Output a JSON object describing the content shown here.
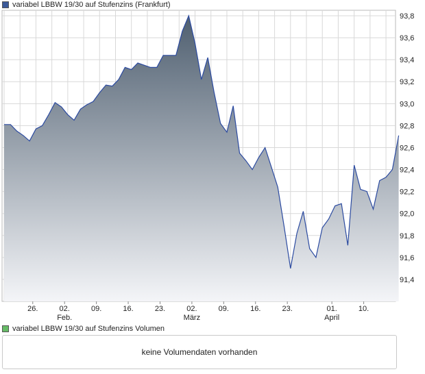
{
  "legend": {
    "price_label": "variabel LBBW 19/30 auf Stufenzins (Frankfurt)",
    "price_color": "#3b5998",
    "volume_label": "variabel LBBW 19/30 auf Stufenzins Volumen",
    "volume_color": "#66bb66"
  },
  "volume_panel": {
    "message": "keine Volumendaten vorhanden"
  },
  "colors": {
    "line": "#2b4aa0",
    "fill_top": "#4f5f70",
    "fill_bottom": "#f4f5f8",
    "grid": "#d8d8d8"
  },
  "chart_data": {
    "type": "area",
    "ylim": [
      91.2,
      93.85
    ],
    "yticks": [
      91.4,
      91.6,
      91.8,
      92.0,
      92.2,
      92.4,
      92.6,
      92.8,
      93.0,
      93.2,
      93.4,
      93.6,
      93.8
    ],
    "ytick_labels": [
      "91,4",
      "91,6",
      "91,8",
      "92,0",
      "92,2",
      "92,4",
      "92,6",
      "92,8",
      "93,0",
      "93,2",
      "93,4",
      "93,6",
      "93,8"
    ],
    "x_index_range": [
      0,
      61.5
    ],
    "xticks": [
      {
        "label": "26.",
        "sub": "",
        "index": 4.5
      },
      {
        "label": "02.",
        "sub": "Feb.",
        "index": 9.5
      },
      {
        "label": "09.",
        "sub": "",
        "index": 14.5
      },
      {
        "label": "16.",
        "sub": "",
        "index": 19.5
      },
      {
        "label": "23.",
        "sub": "",
        "index": 24.5
      },
      {
        "label": "02.",
        "sub": "März",
        "index": 29.5
      },
      {
        "label": "09.",
        "sub": "",
        "index": 34.5
      },
      {
        "label": "16.",
        "sub": "",
        "index": 39.5
      },
      {
        "label": "23.",
        "sub": "",
        "index": 44.5
      },
      {
        "label": "01.",
        "sub": "April",
        "index": 51.5
      },
      {
        "label": "10.",
        "sub": "",
        "index": 56.5
      }
    ],
    "values": [
      92.81,
      92.81,
      92.75,
      92.71,
      92.66,
      92.77,
      92.8,
      92.9,
      93.01,
      92.97,
      92.9,
      92.85,
      92.95,
      92.99,
      93.02,
      93.1,
      93.17,
      93.16,
      93.22,
      93.33,
      93.31,
      93.37,
      93.35,
      93.33,
      93.33,
      93.44,
      93.44,
      93.44,
      93.66,
      93.8,
      93.55,
      93.22,
      93.42,
      93.1,
      92.82,
      92.74,
      92.98,
      92.55,
      92.48,
      92.4,
      92.51,
      92.6,
      92.42,
      92.24,
      91.88,
      91.5,
      91.82,
      92.02,
      91.68,
      91.6,
      91.87,
      91.95,
      92.07,
      92.09,
      91.71,
      92.44,
      92.22,
      92.2,
      92.04,
      92.3,
      92.33,
      92.4,
      92.71
    ]
  }
}
